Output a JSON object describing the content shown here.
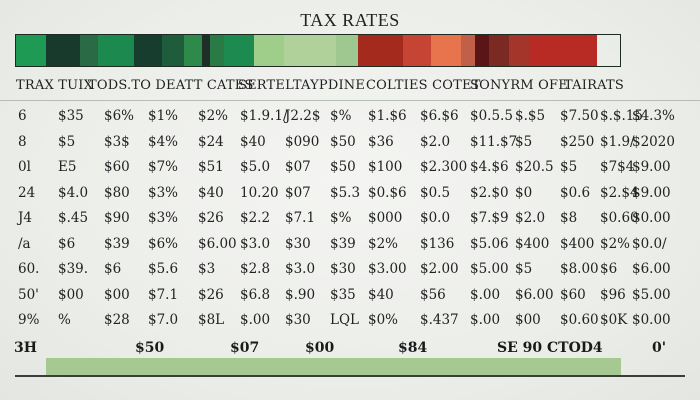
{
  "title": "TAX RATES",
  "band_colors": [
    "#1e9a55",
    "#173a2c",
    "#2a6a45",
    "#1c8a4e",
    "#163d2d",
    "#1f5c3b",
    "#2e8a4a",
    "#1f2f27",
    "#2a7a45",
    "#1d8a4f",
    "#9fcd8a",
    "#b0d29a",
    "#9fc890",
    "#a42a1e",
    "#c54433",
    "#e8744e",
    "#c06048",
    "#5a1616",
    "#7a2a22",
    "#a4352a",
    "#b82a24"
  ],
  "headers": [
    "TRAX TUIX",
    "TODS.TO DEATT CATES",
    "SERTELTAYPDINE",
    "COLTIES COTET",
    "SONYRM OFE",
    "TAIRATS"
  ],
  "rows": [
    [
      "6",
      "$35",
      "$6%",
      "$1%",
      "$2%",
      "$1.9.1/",
      "J2.2$",
      "$%",
      "$1.$6",
      "$6.$6",
      "$0.5.5",
      "$.$5",
      "$7.50",
      "$.$.15",
      "$4.3%"
    ],
    [
      "8",
      "$5",
      "$3$",
      "$4%",
      "$24",
      "$40",
      "$090",
      "$50",
      "$36",
      "$2.0",
      "$11.$7",
      "$5",
      "$250",
      "$1.9/",
      "$2020"
    ],
    [
      "0l",
      "E5",
      "$60",
      "$7%",
      "$51",
      "$5.0",
      "$07",
      "$50",
      "$100",
      "$2.300",
      "$4.$6",
      "$20.5",
      "$5",
      "$7$4",
      "$9.00"
    ],
    [
      "24",
      "$4.0",
      "$80",
      "$3%",
      "$40",
      "10.20",
      "$07",
      "$5.3",
      "$0.$6",
      "$0.5",
      "$2.$0",
      "$0",
      "$0.6",
      "$2.$4",
      "$9.00"
    ],
    [
      "J4",
      "$.45",
      "$90",
      "$3%",
      "$26",
      "$2.2",
      "$7.1",
      "$%",
      "$000",
      "$0.0",
      "$7.$9",
      "$2.0",
      "$8",
      "$0.60",
      "$0.00"
    ],
    [
      "/a",
      "$6",
      "$39",
      "$6%",
      "$6.00",
      "$3.0",
      "$30",
      "$39",
      "$2%",
      "$136",
      "$5.06",
      "$400",
      "$400",
      "$2%",
      "$0.0/"
    ],
    [
      "60.",
      "$39.",
      "$6",
      "$5.6",
      "$3",
      "$2.8",
      "$3.0",
      "$30",
      "$3.00",
      "$2.00",
      "$5.00",
      "$5",
      "$8.00",
      "$6",
      "$6.00"
    ],
    [
      "50'",
      "$00",
      "$00",
      "$7.1",
      "$26",
      "$6.8",
      "$.90",
      "$35",
      "$40",
      "$56",
      "$.00",
      "$6.00",
      "$60",
      "$96",
      "$5.00"
    ],
    [
      "9%",
      "%",
      "$28",
      "$7.0",
      "$8L",
      "$.00",
      "$30",
      "LQL",
      "$0%",
      "$.437",
      "$.00",
      "$00",
      "$0.60",
      "$0K",
      "$0.00"
    ]
  ],
  "footer": [
    "3H",
    "$50",
    "$07",
    "$00",
    "$84",
    "SE 90 CTOD4",
    "0'"
  ]
}
